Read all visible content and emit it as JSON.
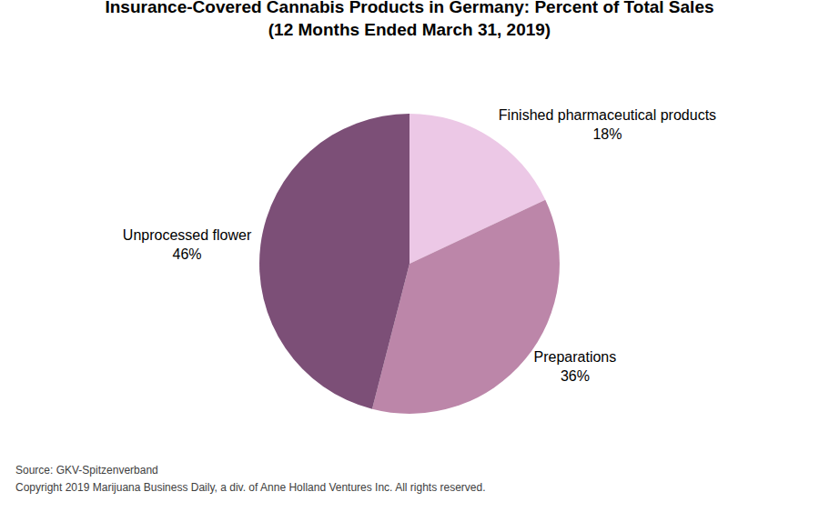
{
  "chart_data": {
    "type": "pie",
    "title": "Insurance-Covered Cannabis Products in Germany: Percent of Total Sales",
    "subtitle": "(12 Months Ended March 31, 2019)",
    "categories": [
      "Finished pharmaceutical products",
      "Preparations",
      "Unprocessed flower"
    ],
    "values": [
      18,
      36,
      46
    ],
    "value_labels": [
      "18%",
      "36%",
      "46%"
    ],
    "colors": [
      "#ecc8e6",
      "#bc86a9",
      "#7c4f77"
    ],
    "data_labels": true,
    "annotations": [
      "Source: GKV-Spitzenverband",
      "Copyright 2019 Marijuana Business Daily, a div. of Anne Holland Ventures Inc. All rights reserved."
    ]
  }
}
